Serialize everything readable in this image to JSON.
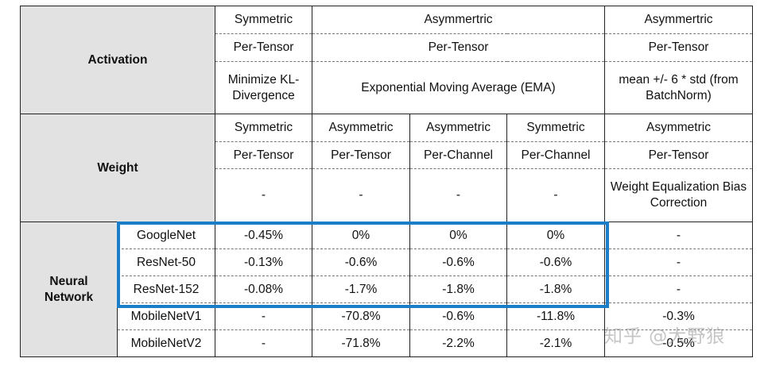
{
  "activation": {
    "row_label": "Activation",
    "symmetry": [
      "Symmetric",
      "Asymmertric",
      "Asymmertric"
    ],
    "granularity": [
      "Per-Tensor",
      "Per-Tensor",
      "Per-Tensor"
    ],
    "method": [
      "Minimize KL-Divergence",
      "Exponential Moving Average (EMA)",
      "mean +/- 6 * std (from BatchNorm)"
    ]
  },
  "weight": {
    "row_label": "Weight",
    "symmetry": [
      "Symmetric",
      "Asymmetric",
      "Asymmetric",
      "Symmetric",
      "Asymmetric"
    ],
    "granularity": [
      "Per-Tensor",
      "Per-Tensor",
      "Per-Channel",
      "Per-Channel",
      "Per-Tensor"
    ],
    "method": [
      "-",
      "-",
      "-",
      "-",
      "Weight Equalization Bias Correction"
    ]
  },
  "network": {
    "row_label": "Neural Network",
    "rows": [
      {
        "name": "GoogleNet",
        "values": [
          "-0.45%",
          "0%",
          "0%",
          "0%",
          "-"
        ]
      },
      {
        "name": "ResNet-50",
        "values": [
          "-0.13%",
          "-0.6%",
          "-0.6%",
          "-0.6%",
          "-"
        ]
      },
      {
        "name": "ResNet-152",
        "values": [
          "-0.08%",
          "-1.7%",
          "-1.8%",
          "-1.8%",
          "-"
        ]
      },
      {
        "name": "MobileNetV1",
        "values": [
          "-",
          "-70.8%",
          "-0.6%",
          "-11.8%",
          "-0.3%"
        ]
      },
      {
        "name": "MobileNetV2",
        "values": [
          "-",
          "-71.8%",
          "-2.2%",
          "-2.1%",
          "-0.5%"
        ]
      }
    ]
  },
  "highlight": {
    "color": "#1a7dc8"
  },
  "watermark": "知乎 @大野狼"
}
